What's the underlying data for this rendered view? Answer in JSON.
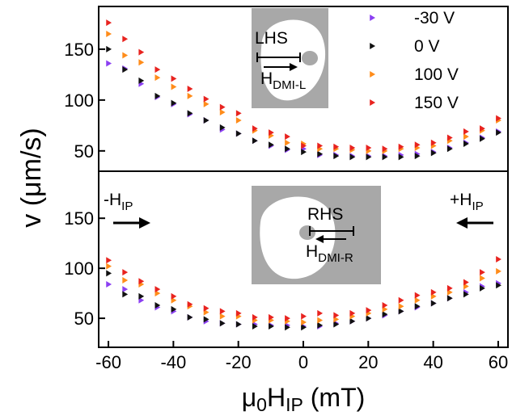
{
  "chart_data": [
    {
      "type": "scatter",
      "y_label": "v (μm/s)",
      "x": [
        -60,
        -55,
        -50,
        -45,
        -40,
        -35,
        -30,
        -25,
        -20,
        -15,
        -10,
        -5,
        0,
        5,
        10,
        15,
        20,
        25,
        30,
        35,
        40,
        45,
        50,
        55,
        60
      ],
      "xlim": [
        -63,
        63
      ],
      "ylim": [
        30,
        192
      ],
      "yticks": [
        50,
        100,
        150
      ],
      "legend": "top-right",
      "series": [
        {
          "name": "-30 V",
          "color": "#8b3ff2",
          "values": [
            136,
            131,
            116,
            103,
            96,
            86,
            80,
            71,
            67,
            60,
            55,
            51,
            52,
            46,
            46,
            45,
            45,
            45,
            46,
            47,
            49,
            53,
            58,
            63,
            69
          ]
        },
        {
          "name": "0 V",
          "color": "#111111",
          "values": [
            150,
            130,
            119,
            104,
            97,
            87,
            80,
            73,
            67,
            60,
            56,
            52,
            49,
            47,
            45,
            44,
            44,
            44,
            44,
            45,
            48,
            52,
            57,
            62,
            68
          ]
        },
        {
          "name": "100 V",
          "color": "#ff8c1a",
          "values": [
            165,
            144,
            137,
            122,
            113,
            104,
            96,
            88,
            80,
            70,
            65,
            58,
            57,
            52,
            52,
            51,
            50,
            50,
            52,
            53,
            55,
            60,
            64,
            70,
            80
          ]
        },
        {
          "name": "150 V",
          "color": "#e8231f",
          "values": [
            176,
            160,
            147,
            130,
            121,
            111,
            101,
            93,
            87,
            72,
            68,
            64,
            55,
            55,
            54,
            53,
            53,
            52,
            54,
            56,
            58,
            63,
            69,
            72,
            82
          ]
        }
      ],
      "annotations": [
        {
          "parts": [
            {
              "text": "LHS"
            }
          ]
        },
        {
          "parts": [
            {
              "text": "H"
            },
            {
              "text": "DMI-L",
              "sub": true
            }
          ]
        }
      ]
    },
    {
      "type": "scatter",
      "x_label": [
        {
          "text": "μ"
        },
        {
          "text": "0",
          "sub": true
        },
        {
          "text": "H"
        },
        {
          "text": "IP",
          "sub": true
        },
        {
          "text": " (mT)"
        }
      ],
      "x": [
        -60,
        -55,
        -50,
        -45,
        -40,
        -35,
        -30,
        -25,
        -20,
        -15,
        -10,
        -5,
        0,
        5,
        10,
        15,
        20,
        25,
        30,
        35,
        40,
        45,
        50,
        55,
        60
      ],
      "xlim": [
        -63,
        63
      ],
      "xticks": [
        -60,
        -40,
        -20,
        0,
        20,
        40,
        60
      ],
      "ylim": [
        21,
        197
      ],
      "yticks": [
        50,
        100,
        150
      ],
      "series": [
        {
          "name": "-30 V",
          "color": "#8b3ff2",
          "values": [
            84,
            79,
            68,
            61,
            57,
            51,
            47,
            45,
            44,
            44,
            43,
            43,
            42,
            42,
            45,
            47,
            50,
            53,
            57,
            61,
            65,
            70,
            76,
            82,
            85
          ]
        },
        {
          "name": "0 V",
          "color": "#111111",
          "values": [
            95,
            74,
            72,
            63,
            59,
            51,
            49,
            45,
            44,
            42,
            42,
            41,
            41,
            43,
            44,
            47,
            50,
            54,
            57,
            62,
            65,
            70,
            74,
            80,
            83
          ]
        },
        {
          "name": "100 V",
          "color": "#ff8c1a",
          "values": [
            102,
            88,
            84,
            75,
            68,
            62,
            56,
            52,
            52,
            48,
            48,
            47,
            46,
            48,
            49,
            52,
            55,
            59,
            62,
            68,
            72,
            76,
            82,
            90,
            97
          ]
        },
        {
          "name": "150 V",
          "color": "#e8231f",
          "values": [
            108,
            96,
            87,
            79,
            72,
            64,
            60,
            57,
            55,
            51,
            51,
            50,
            52,
            55,
            53,
            55,
            58,
            63,
            68,
            73,
            76,
            80,
            86,
            96,
            109
          ]
        }
      ],
      "annotations": [
        {
          "parts": [
            {
              "text": "RHS"
            }
          ]
        },
        {
          "parts": [
            {
              "text": "H"
            },
            {
              "text": "DMI-R",
              "sub": true
            }
          ]
        },
        {
          "parts": [
            {
              "text": "-H"
            },
            {
              "text": "IP",
              "sub": true
            }
          ]
        },
        {
          "parts": [
            {
              "text": "+H"
            },
            {
              "text": "IP",
              "sub": true
            }
          ]
        }
      ]
    }
  ]
}
